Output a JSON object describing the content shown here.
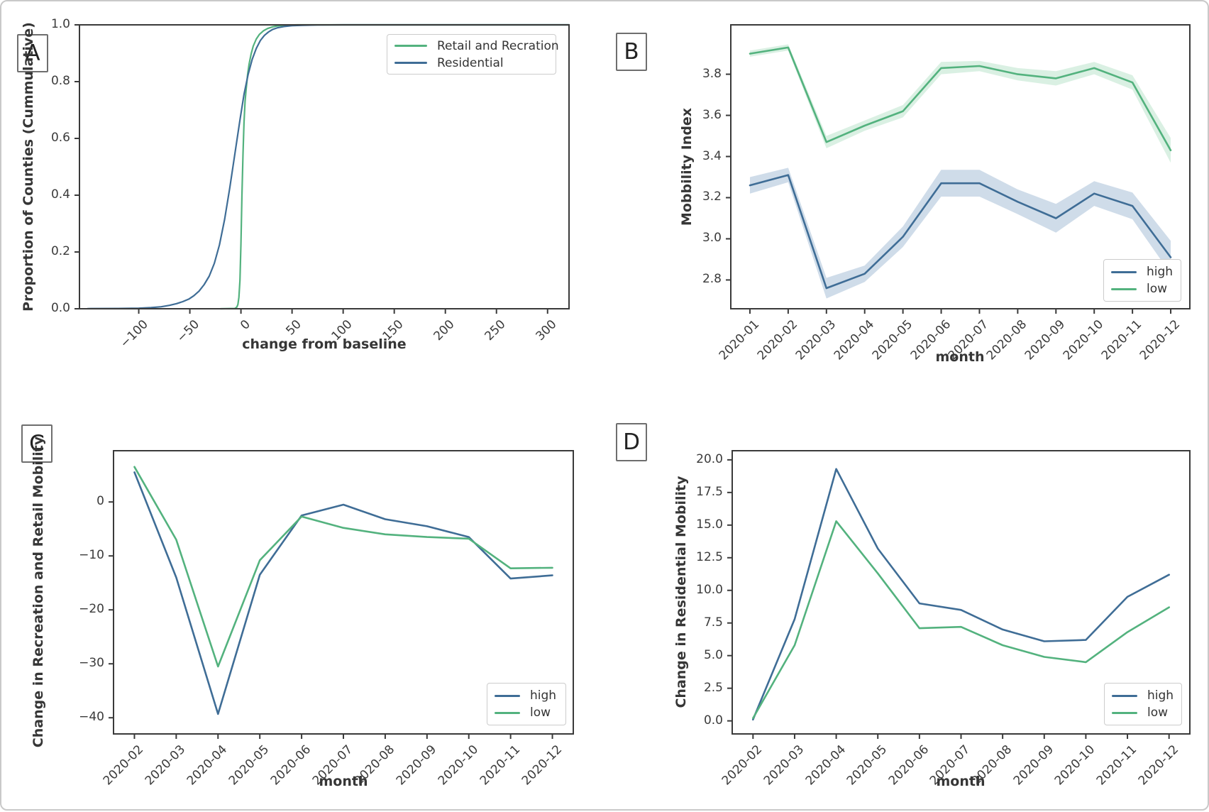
{
  "figure": {
    "panels": [
      {
        "label": "A",
        "chart_data": {
          "type": "line",
          "title": "",
          "xlabel": "change from baseline",
          "ylabel": "Proportion of Counties (Cummulative)",
          "xlim": [
            -158,
            321
          ],
          "ylim": [
            0,
            1
          ],
          "grid": false,
          "legend_position": "upper right",
          "xticks": [
            {
              "v": -100,
              "label": "−100"
            },
            {
              "v": -50,
              "label": "−50"
            },
            {
              "v": 0,
              "label": "0"
            },
            {
              "v": 50,
              "label": "50"
            },
            {
              "v": 100,
              "label": "100"
            },
            {
              "v": 150,
              "label": "150"
            },
            {
              "v": 200,
              "label": "200"
            },
            {
              "v": 250,
              "label": "250"
            },
            {
              "v": 300,
              "label": "300"
            }
          ],
          "yticks": [
            {
              "v": 0.0,
              "label": "0.0"
            },
            {
              "v": 0.2,
              "label": "0.2"
            },
            {
              "v": 0.4,
              "label": "0.4"
            },
            {
              "v": 0.6,
              "label": "0.6"
            },
            {
              "v": 0.8,
              "label": "0.8"
            },
            {
              "v": 1.0,
              "label": "1.0"
            }
          ],
          "series": [
            {
              "name": "Retail and Recration",
              "color": "#53b27e",
              "points": [
                [
                  -20,
                  0
                ],
                [
                  -6,
                  0.001
                ],
                [
                  -4,
                  0.006
                ],
                [
                  -3,
                  0.015
                ],
                [
                  -2,
                  0.04
                ],
                [
                  -1,
                  0.1
                ],
                [
                  0,
                  0.23
                ],
                [
                  1,
                  0.4
                ],
                [
                  2,
                  0.545
                ],
                [
                  3,
                  0.655
                ],
                [
                  4,
                  0.73
                ],
                [
                  5,
                  0.77
                ],
                [
                  6.5,
                  0.825
                ],
                [
                  8,
                  0.862
                ],
                [
                  10,
                  0.898
                ],
                [
                  12,
                  0.925
                ],
                [
                  15,
                  0.95
                ],
                [
                  18,
                  0.966
                ],
                [
                  22,
                  0.979
                ],
                [
                  26,
                  0.987
                ],
                [
                  31,
                  0.993
                ],
                [
                  37,
                  0.997
                ],
                [
                  45,
                  0.999
                ],
                [
                  55,
                  1.0
                ],
                [
                  321,
                  1.0
                ]
              ]
            },
            {
              "name": "Residential",
              "color": "#3f6d96",
              "points": [
                [
                  -150,
                  0.0005
                ],
                [
                  -120,
                  0.001
                ],
                [
                  -100,
                  0.002
                ],
                [
                  -88,
                  0.004
                ],
                [
                  -78,
                  0.007
                ],
                [
                  -70,
                  0.012
                ],
                [
                  -63,
                  0.018
                ],
                [
                  -57,
                  0.025
                ],
                [
                  -51,
                  0.034
                ],
                [
                  -46,
                  0.046
                ],
                [
                  -41,
                  0.062
                ],
                [
                  -36,
                  0.085
                ],
                [
                  -31,
                  0.115
                ],
                [
                  -26,
                  0.16
                ],
                [
                  -21,
                  0.225
                ],
                [
                  -16,
                  0.315
                ],
                [
                  -11,
                  0.425
                ],
                [
                  -6,
                  0.545
                ],
                [
                  -1,
                  0.665
                ],
                [
                  3,
                  0.755
                ],
                [
                  7,
                  0.825
                ],
                [
                  11,
                  0.878
                ],
                [
                  15,
                  0.917
                ],
                [
                  19,
                  0.945
                ],
                [
                  23,
                  0.963
                ],
                [
                  27,
                  0.975
                ],
                [
                  31,
                  0.984
                ],
                [
                  36,
                  0.99
                ],
                [
                  42,
                  0.994
                ],
                [
                  50,
                  0.997
                ],
                [
                  60,
                  0.9985
                ],
                [
                  75,
                  0.9995
                ],
                [
                  100,
                  1.0
                ],
                [
                  321,
                  1.0
                ]
              ]
            }
          ]
        }
      },
      {
        "label": "B",
        "chart_data": {
          "type": "line",
          "title": "",
          "xlabel": "month",
          "ylabel": "Mobbility Index",
          "ylim": [
            2.66,
            4.04
          ],
          "grid": false,
          "legend_position": "lower right",
          "categories": [
            "2020-01",
            "2020-02",
            "2020-03",
            "2020-04",
            "2020-05",
            "2020-06",
            "2020-07",
            "2020-08",
            "2020-09",
            "2020-10",
            "2020-11",
            "2020-12"
          ],
          "yticks": [
            {
              "v": 2.8,
              "label": "2.8"
            },
            {
              "v": 3.0,
              "label": "3.0"
            },
            {
              "v": 3.2,
              "label": "3.2"
            },
            {
              "v": 3.4,
              "label": "3.4"
            },
            {
              "v": 3.6,
              "label": "3.6"
            },
            {
              "v": 3.8,
              "label": "3.8"
            }
          ],
          "series": [
            {
              "name": "high",
              "color": "#3f6d96",
              "band_color": "#c7d6e5",
              "values": [
                3.26,
                3.31,
                2.76,
                2.83,
                3.01,
                3.27,
                3.27,
                3.18,
                3.1,
                3.22,
                3.16,
                2.91
              ],
              "ci": [
                0.04,
                0.035,
                0.05,
                0.04,
                0.05,
                0.065,
                0.065,
                0.06,
                0.07,
                0.06,
                0.065,
                0.08
              ]
            },
            {
              "name": "low",
              "color": "#53b27e",
              "band_color": "#d4edde",
              "values": [
                3.9,
                3.93,
                3.47,
                3.55,
                3.62,
                3.83,
                3.84,
                3.8,
                3.78,
                3.83,
                3.76,
                3.43
              ],
              "ci": [
                0.015,
                0.015,
                0.03,
                0.025,
                0.03,
                0.03,
                0.025,
                0.03,
                0.035,
                0.03,
                0.035,
                0.06
              ]
            }
          ]
        }
      },
      {
        "label": "C",
        "chart_data": {
          "type": "line",
          "title": "",
          "xlabel": "month",
          "ylabel": "Change in Recreation and Retail Mobility",
          "ylim": [
            -43,
            9.5
          ],
          "grid": false,
          "legend_position": "lower right",
          "categories": [
            "2020-02",
            "2020-03",
            "2020-04",
            "2020-05",
            "2020-06",
            "2020-07",
            "2020-08",
            "2020-09",
            "2020-10",
            "2020-11",
            "2020-12"
          ],
          "yticks": [
            {
              "v": 0,
              "label": "0"
            },
            {
              "v": -10,
              "label": "−10"
            },
            {
              "v": -20,
              "label": "−20"
            },
            {
              "v": -30,
              "label": "−30"
            },
            {
              "v": -40,
              "label": "−40"
            }
          ],
          "series": [
            {
              "name": "high",
              "color": "#3f6d96",
              "values": [
                5.5,
                -14.0,
                -39.3,
                -13.5,
                -2.5,
                -0.5,
                -3.2,
                -4.5,
                -6.5,
                -14.2,
                -13.6
              ]
            },
            {
              "name": "low",
              "color": "#53b27e",
              "values": [
                6.5,
                -7.0,
                -30.5,
                -10.8,
                -2.7,
                -4.8,
                -6.0,
                -6.5,
                -6.8,
                -12.3,
                -12.2
              ]
            }
          ]
        }
      },
      {
        "label": "D",
        "chart_data": {
          "type": "line",
          "title": "",
          "xlabel": "month",
          "ylabel": "Change in Residential Mobility",
          "ylim": [
            -1.0,
            20.7
          ],
          "grid": false,
          "legend_position": "lower right",
          "categories": [
            "2020-02",
            "2020-03",
            "2020-04",
            "2020-05",
            "2020-06",
            "2020-07",
            "2020-08",
            "2020-09",
            "2020-10",
            "2020-11",
            "2020-12"
          ],
          "yticks": [
            {
              "v": 0.0,
              "label": "0.0"
            },
            {
              "v": 2.5,
              "label": "2.5"
            },
            {
              "v": 5.0,
              "label": "5.0"
            },
            {
              "v": 7.5,
              "label": "7.5"
            },
            {
              "v": 10.0,
              "label": "10.0"
            },
            {
              "v": 12.5,
              "label": "12.5"
            },
            {
              "v": 15.0,
              "label": "15.0"
            },
            {
              "v": 17.5,
              "label": "17.5"
            },
            {
              "v": 20.0,
              "label": "20.0"
            }
          ],
          "series": [
            {
              "name": "high",
              "color": "#3f6d96",
              "values": [
                0.1,
                7.8,
                19.3,
                13.2,
                9.0,
                8.5,
                7.0,
                6.1,
                6.2,
                9.5,
                11.2
              ]
            },
            {
              "name": "low",
              "color": "#53b27e",
              "values": [
                0.2,
                5.8,
                15.3,
                11.3,
                7.1,
                7.2,
                5.8,
                4.9,
                4.5,
                6.8,
                8.7
              ]
            }
          ]
        }
      }
    ]
  },
  "colors": {
    "high_line": "#3f6d96",
    "low_line": "#53b27e",
    "high_band": "#c7d6e5",
    "low_band": "#d4edde",
    "spine": "#3a3a3a",
    "text": "#363636",
    "figure_border": "#c9c9c9"
  }
}
